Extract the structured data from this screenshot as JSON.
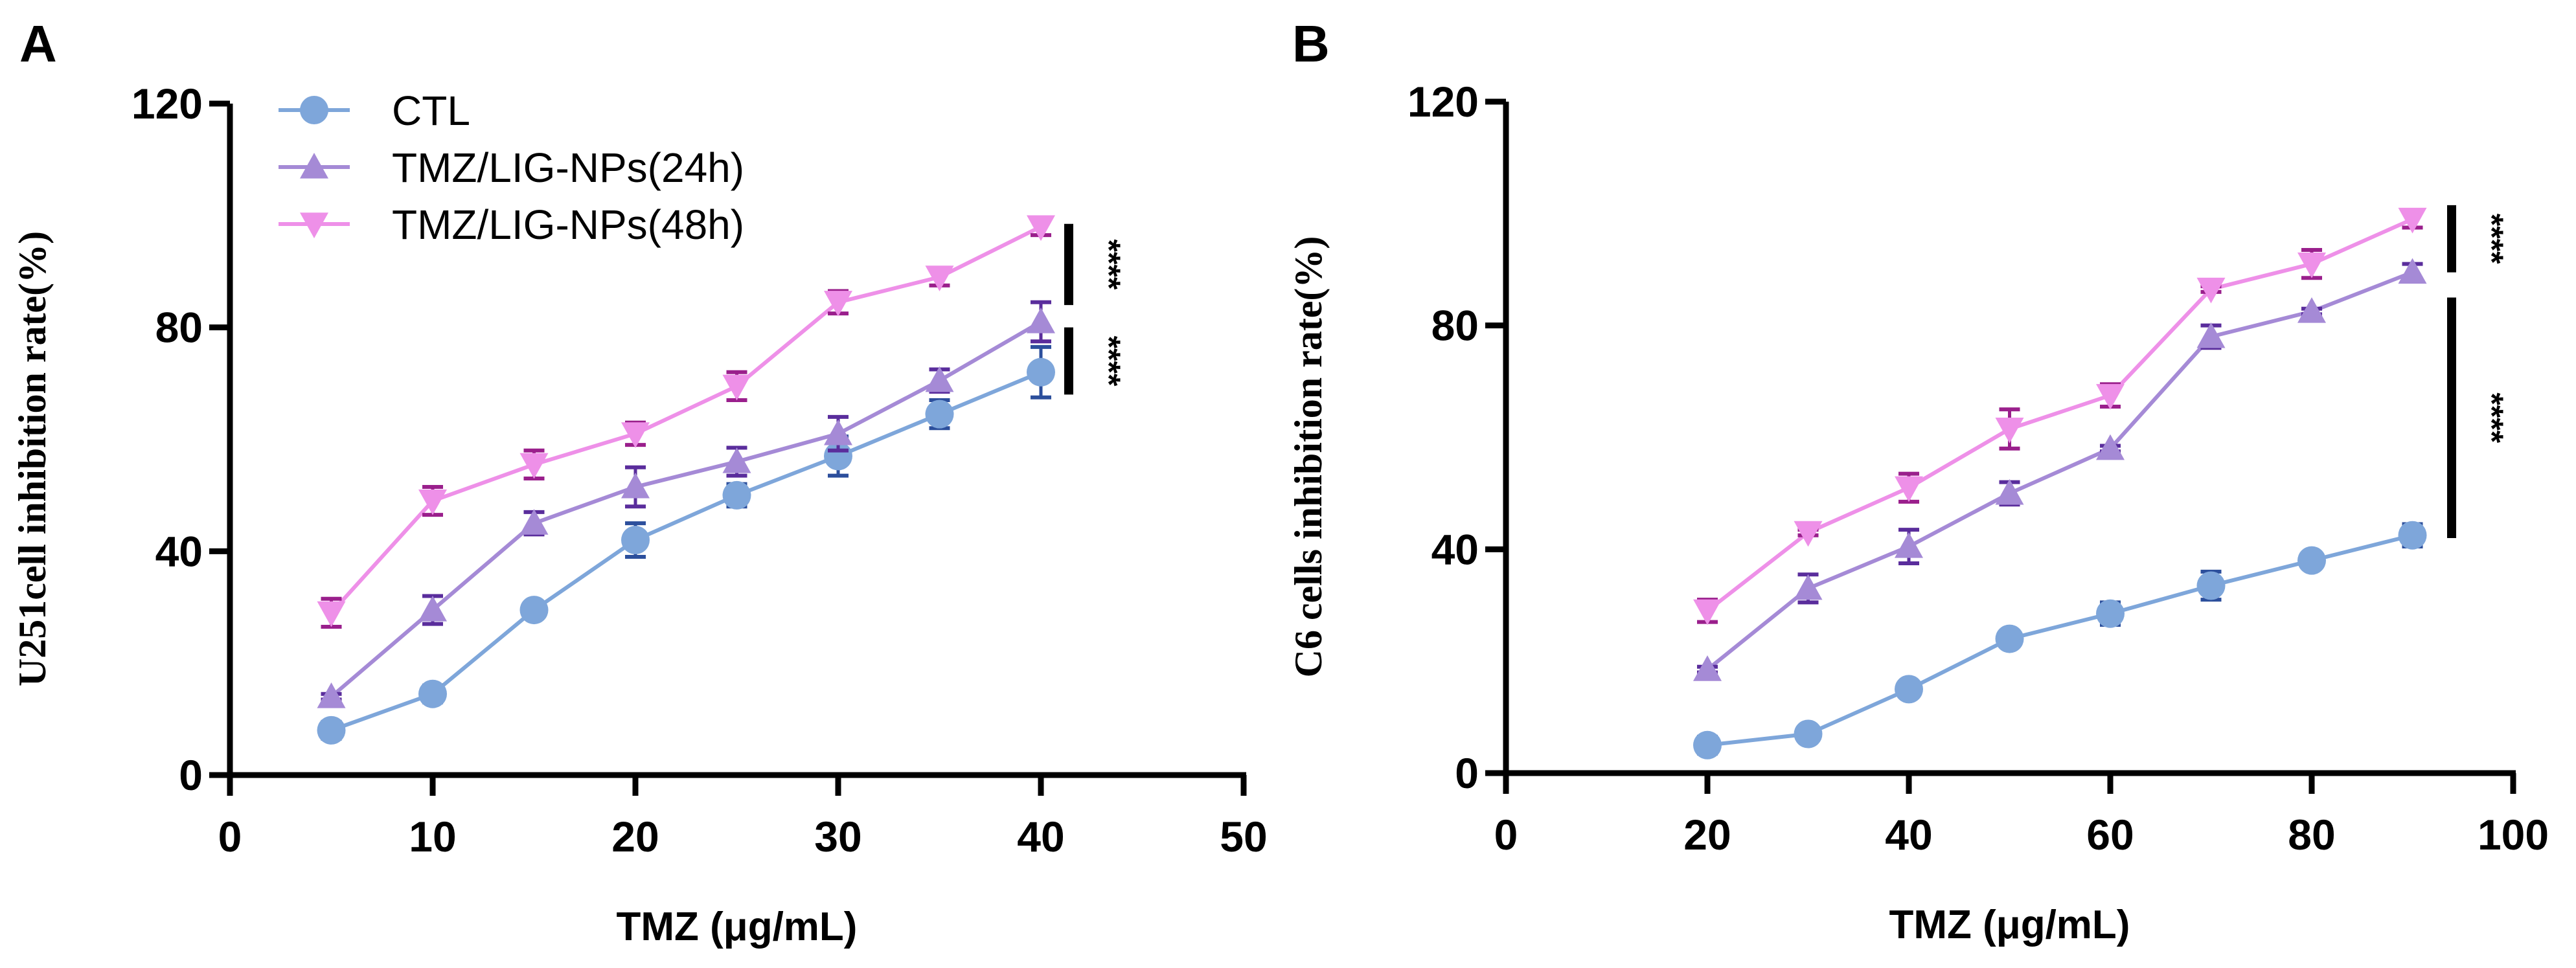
{
  "chart_data": [
    {
      "type": "line",
      "panel_label": "A",
      "xlabel": "TMZ (μg/mL)",
      "ylabel": "U251cell inhibition rate(%)",
      "xlim": [
        0,
        50
      ],
      "ylim": [
        0,
        120
      ],
      "xticks": [
        0,
        10,
        20,
        30,
        40,
        50
      ],
      "yticks": [
        0,
        40,
        80,
        120
      ],
      "grid": false,
      "legend_position": "top-left",
      "x": [
        5,
        10,
        15,
        20,
        25,
        30,
        35,
        40
      ],
      "series": [
        {
          "name": "CTL",
          "marker": "circle",
          "color": "#7ea6da",
          "err_color": "#2c4f9c",
          "values": [
            8,
            14.5,
            29.5,
            42,
            50,
            57,
            64.5,
            72
          ],
          "errors": [
            1.5,
            1.5,
            1,
            3,
            2,
            3.5,
            2.5,
            4.5
          ]
        },
        {
          "name": "TMZ/LIG-NPs(24h)",
          "marker": "triangle-up",
          "color": "#a58ad6",
          "err_color": "#5a2d9c",
          "values": [
            14,
            29.5,
            45,
            51.5,
            56,
            61,
            70.5,
            81
          ],
          "errors": [
            0.5,
            2.5,
            2,
            3.5,
            2.5,
            3,
            2,
            3.5
          ]
        },
        {
          "name": "TMZ/LIG-NPs(48h)",
          "marker": "triangle-down",
          "color": "#ee90e8",
          "err_color": "#9a1f8c",
          "values": [
            29,
            49,
            55.5,
            61,
            69.5,
            84.5,
            89,
            98
          ],
          "errors": [
            2.5,
            2.5,
            2.5,
            2,
            2.5,
            2,
            1.5,
            1.5
          ]
        }
      ],
      "significance": [
        {
          "label": "****",
          "range": [
            84,
            98.5
          ]
        },
        {
          "label": "****",
          "range": [
            68,
            80
          ]
        }
      ]
    },
    {
      "type": "line",
      "panel_label": "B",
      "xlabel": "TMZ (μg/mL)",
      "ylabel": "C6 cells inhibition rate(%)",
      "xlim": [
        0,
        100
      ],
      "ylim": [
        0,
        120
      ],
      "xticks": [
        0,
        20,
        40,
        60,
        80,
        100
      ],
      "yticks": [
        0,
        40,
        80,
        120
      ],
      "grid": false,
      "x": [
        20,
        30,
        40,
        50,
        60,
        70,
        80,
        90
      ],
      "series": [
        {
          "name": "CTL",
          "marker": "circle",
          "color": "#7ea6da",
          "err_color": "#2c4f9c",
          "values": [
            5,
            7,
            15,
            24,
            28.5,
            33.5,
            38,
            42.5
          ],
          "errors": [
            1.5,
            0.5,
            0.5,
            0.5,
            2,
            2.5,
            0.5,
            2
          ]
        },
        {
          "name": "TMZ/LIG-NPs(24h)",
          "marker": "triangle-up",
          "color": "#a58ad6",
          "err_color": "#5a2d9c",
          "values": [
            18.5,
            33,
            40.5,
            50,
            58,
            78,
            82.5,
            89.5
          ],
          "errors": [
            0.5,
            2.5,
            3,
            2,
            0.5,
            2,
            0.5,
            1.5
          ]
        },
        {
          "name": "TMZ/LIG-NPs(48h)",
          "marker": "triangle-down",
          "color": "#ee90e8",
          "err_color": "#9a1f8c",
          "values": [
            29,
            43,
            51,
            61.5,
            67.5,
            86.5,
            91,
            99
          ],
          "errors": [
            2,
            0.5,
            2.5,
            3.5,
            2,
            0.5,
            2.5,
            1.5
          ]
        }
      ],
      "significance": [
        {
          "label": "****",
          "range": [
            89.5,
            101.5
          ]
        },
        {
          "label": "****",
          "range": [
            42,
            85
          ]
        }
      ]
    }
  ]
}
